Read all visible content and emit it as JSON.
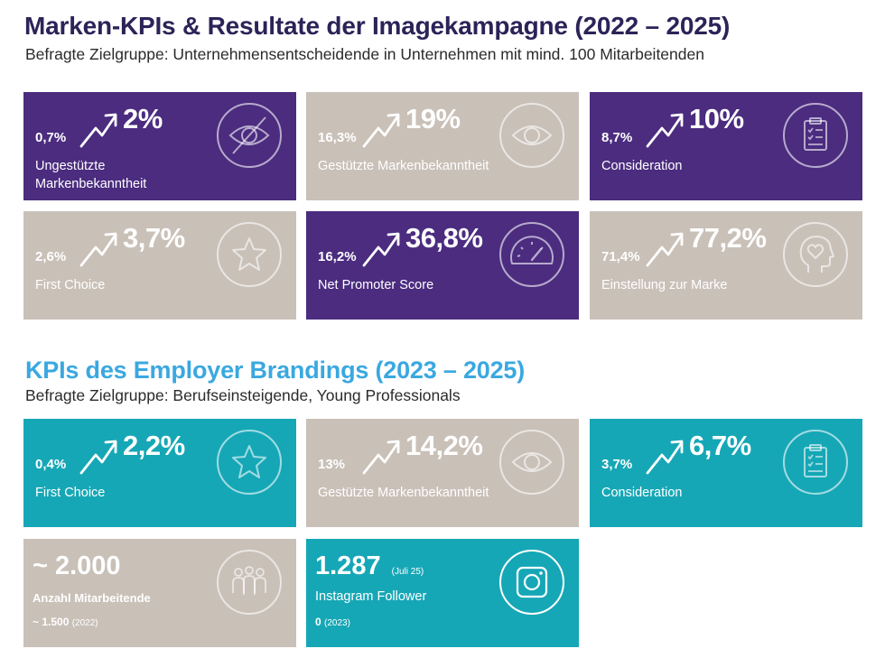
{
  "header": {
    "title": "Marken-KPIs & Resultate der Imagekampagne (2022 – 2025)",
    "subtitle": "Befragte Zielgruppe: Unternehmensentscheidende in Unternehmen mit mind. 100 Mitarbeitenden"
  },
  "brand_kpis": [
    {
      "from": "0,7%",
      "to": "2%",
      "label": "Ungestützte Markenbekanntheit",
      "icon": "eye-slash-icon",
      "color": "#4b2c7f"
    },
    {
      "from": "16,3%",
      "to": "19%",
      "label": "Gestützte Markenbekanntheit",
      "icon": "eye-icon",
      "color": "#c9c0b8"
    },
    {
      "from": "8,7%",
      "to": "10%",
      "label": "Consideration",
      "icon": "clipboard-checklist-icon",
      "color": "#4b2c7f"
    },
    {
      "from": "2,6%",
      "to": "3,7%",
      "label": "First Choice",
      "icon": "star-icon",
      "color": "#c9c0b8"
    },
    {
      "from": "16,2%",
      "to": "36,8%",
      "label": "Net Promoter Score",
      "icon": "gauge-icon",
      "color": "#4b2c7f"
    },
    {
      "from": "71,4%",
      "to": "77,2%",
      "label": "Einstellung zur Marke",
      "icon": "head-heart-icon",
      "color": "#c9c0b8"
    }
  ],
  "employer_section": {
    "title": "KPIs des Employer Brandings (2023 – 2025)",
    "subtitle": "Befragte Zielgruppe: Berufseinsteigende, Young Professionals"
  },
  "employer_kpis": [
    {
      "from": "0,4%",
      "to": "2,2%",
      "label": "First Choice",
      "icon": "star-icon",
      "color": "#16a7b6"
    },
    {
      "from": "13%",
      "to": "14,2%",
      "label": "Gestützte Markenbekanntheit",
      "icon": "eye-icon",
      "color": "#c9c0b8"
    },
    {
      "from": "3,7%",
      "to": "6,7%",
      "label": "Consideration",
      "icon": "clipboard-checklist-icon",
      "color": "#16a7b6"
    }
  ],
  "employees": {
    "value": "~ 2.000",
    "label": "Anzahl Mitarbeitende",
    "prev_value": "~ 1.500",
    "prev_year": "(2022)",
    "icon": "people-group-icon"
  },
  "instagram": {
    "value": "1.287",
    "date": "(Juli 25)",
    "label": "Instagram Follower",
    "prev_value": "0",
    "prev_year": "(2023)",
    "icon": "instagram-icon"
  }
}
